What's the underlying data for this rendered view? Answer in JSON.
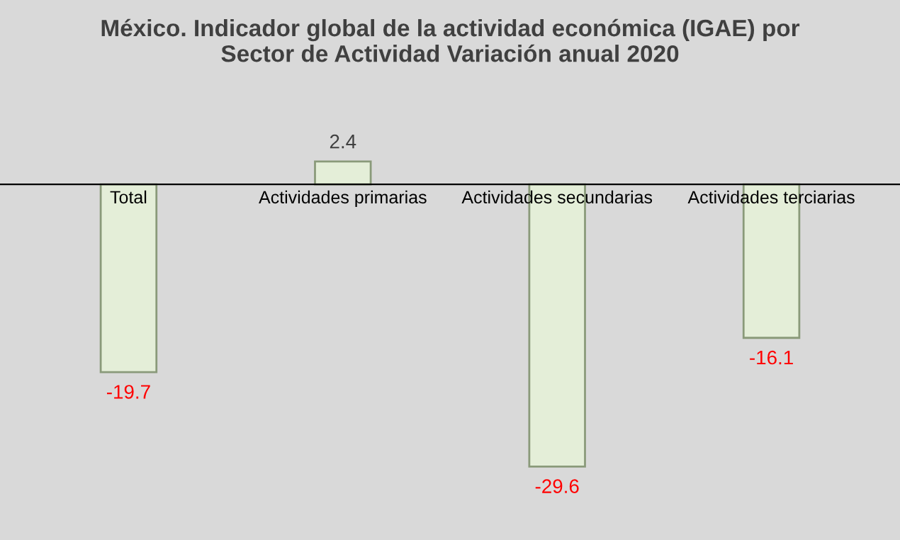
{
  "chart_data": {
    "type": "bar",
    "title": "México. Indicador global de la actividad económica (IGAE) por\nSector de Actividad Variación anual 2020",
    "categories": [
      "Total",
      "Actividades primarias",
      "Actividades secundarias",
      "Actividades terciarias"
    ],
    "values": [
      -19.7,
      2.4,
      -29.6,
      -16.1
    ],
    "color": "#e4eed8",
    "data_labels": true
  }
}
